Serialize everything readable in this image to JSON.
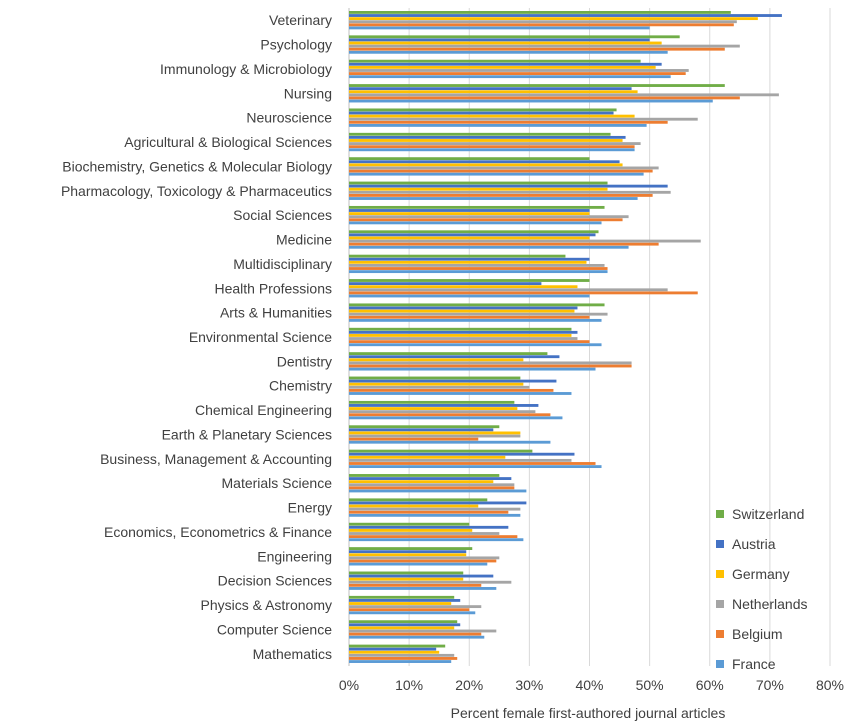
{
  "chart_data": {
    "type": "bar",
    "orientation": "horizontal",
    "xlabel": "Percent female first-authored journal articles",
    "xlim": [
      0,
      0.8
    ],
    "xticks": [
      "0%",
      "10%",
      "20%",
      "30%",
      "40%",
      "50%",
      "60%",
      "70%",
      "80%"
    ],
    "grid": true,
    "legend_position": "bottom-right",
    "categories": [
      "Veterinary",
      "Psychology",
      "Immunology & Microbiology",
      "Nursing",
      "Neuroscience",
      "Agricultural & Biological Sciences",
      "Biochemistry, Genetics & Molecular Biology",
      "Pharmacology, Toxicology & Pharmaceutics",
      "Social Sciences",
      "Medicine",
      "Multidisciplinary",
      "Health Professions",
      "Arts & Humanities",
      "Environmental Science",
      "Dentistry",
      "Chemistry",
      "Chemical Engineering",
      "Earth & Planetary Sciences",
      "Business, Management & Accounting",
      "Materials Science",
      "Energy",
      "Economics, Econometrics & Finance",
      "Engineering",
      "Decision Sciences",
      "Physics & Astronomy",
      "Computer Science",
      "Mathematics"
    ],
    "series": [
      {
        "name": "Switzerland",
        "color": "#70ad47",
        "values": [
          0.635,
          0.55,
          0.485,
          0.625,
          0.445,
          0.435,
          0.4,
          0.43,
          0.425,
          0.415,
          0.36,
          0.4,
          0.425,
          0.37,
          0.33,
          0.285,
          0.275,
          0.25,
          0.305,
          0.25,
          0.23,
          0.2,
          0.205,
          0.19,
          0.175,
          0.18,
          0.16
        ]
      },
      {
        "name": "Austria",
        "color": "#4472c4",
        "values": [
          0.72,
          0.5,
          0.52,
          0.47,
          0.44,
          0.46,
          0.45,
          0.53,
          0.4,
          0.41,
          0.4,
          0.32,
          0.38,
          0.38,
          0.35,
          0.345,
          0.315,
          0.24,
          0.375,
          0.27,
          0.295,
          0.265,
          0.195,
          0.24,
          0.185,
          0.185,
          0.145
        ]
      },
      {
        "name": "Germany",
        "color": "#ffc000",
        "values": [
          0.68,
          0.52,
          0.51,
          0.48,
          0.475,
          0.455,
          0.455,
          0.43,
          0.4,
          0.4,
          0.395,
          0.38,
          0.375,
          0.37,
          0.29,
          0.29,
          0.28,
          0.285,
          0.26,
          0.24,
          0.215,
          0.205,
          0.195,
          0.19,
          0.17,
          0.175,
          0.15
        ]
      },
      {
        "name": "Netherlands",
        "color": "#a5a5a5",
        "values": [
          0.645,
          0.65,
          0.565,
          0.715,
          0.58,
          0.485,
          0.515,
          0.535,
          0.465,
          0.585,
          0.425,
          0.53,
          0.43,
          0.38,
          0.47,
          0.3,
          0.31,
          0.285,
          0.37,
          0.275,
          0.285,
          0.25,
          0.25,
          0.27,
          0.22,
          0.245,
          0.175
        ]
      },
      {
        "name": "Belgium",
        "color": "#ed7d31",
        "values": [
          0.64,
          0.625,
          0.56,
          0.65,
          0.53,
          0.475,
          0.505,
          0.505,
          0.455,
          0.515,
          0.43,
          0.58,
          0.4,
          0.4,
          0.47,
          0.34,
          0.335,
          0.215,
          0.41,
          0.275,
          0.265,
          0.28,
          0.245,
          0.22,
          0.2,
          0.22,
          0.18
        ]
      },
      {
        "name": "France",
        "color": "#5b9bd5",
        "values": [
          0.5,
          0.53,
          0.535,
          0.605,
          0.495,
          0.475,
          0.49,
          0.48,
          0.42,
          0.465,
          0.43,
          0.4,
          0.42,
          0.42,
          0.41,
          0.37,
          0.355,
          0.335,
          0.42,
          0.295,
          0.285,
          0.29,
          0.23,
          0.245,
          0.21,
          0.225,
          0.17
        ]
      }
    ],
    "legend_order": [
      "Switzerland",
      "Austria",
      "Germany",
      "Netherlands",
      "Belgium",
      "France"
    ]
  }
}
